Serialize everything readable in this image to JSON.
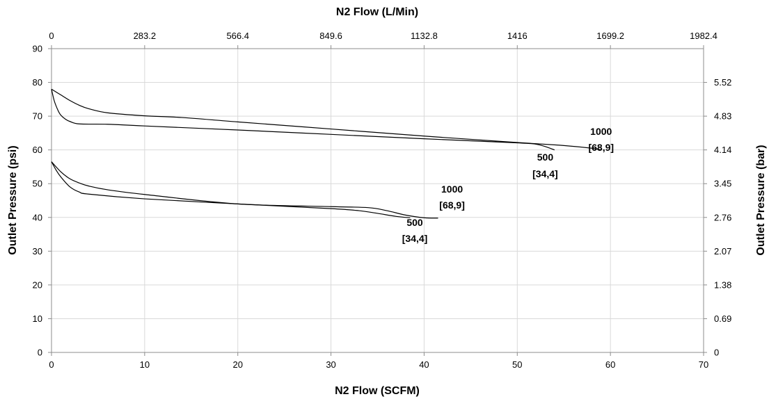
{
  "chart_data": {
    "type": "line",
    "title": "",
    "xlabel": "N2 Flow (SCFM)",
    "x2label": "N2 Flow (L/Min)",
    "ylabel": "Outlet Pressure (psi)",
    "y2label": "Outlet Pressure (bar)",
    "xlim": [
      0,
      70
    ],
    "ylim": [
      0,
      90
    ],
    "grid": true,
    "x_ticks": [
      "0",
      "10",
      "20",
      "30",
      "40",
      "50",
      "60",
      "70"
    ],
    "x2_ticks": [
      "0",
      "283.2",
      "566.4",
      "849.6",
      "1132.8",
      "1416",
      "1699.2",
      "1982.4"
    ],
    "y_ticks": [
      "0",
      "10",
      "20",
      "30",
      "40",
      "50",
      "60",
      "70",
      "80",
      "90"
    ],
    "y2_ticks": [
      "0",
      "0.69",
      "1.38",
      "2.07",
      "2.76",
      "3.45",
      "4.14",
      "4.83",
      "5.52"
    ],
    "y2_tick_values": [
      0,
      10,
      20,
      30,
      40,
      50,
      60,
      70,
      80
    ],
    "series": [
      {
        "x": [
          0,
          1,
          2,
          3,
          4,
          6,
          10,
          14,
          20,
          30,
          40,
          50,
          55,
          58,
          59
        ],
        "y": [
          78,
          76.3,
          74.6,
          73.2,
          72.2,
          71,
          70.1,
          69.6,
          68.3,
          66.2,
          64.1,
          62.2,
          61.3,
          60.5,
          60
        ]
      },
      {
        "x": [
          0,
          0.3,
          0.7,
          1,
          1.5,
          2,
          3,
          6,
          10,
          20,
          30,
          40,
          50,
          52,
          53,
          54
        ],
        "y": [
          78,
          74.5,
          71.7,
          70.3,
          69.1,
          68.4,
          67.7,
          67.6,
          67.1,
          65.9,
          64.6,
          63.3,
          62.1,
          61.7,
          61,
          60
        ]
      },
      {
        "x": [
          0,
          1,
          2,
          3,
          4,
          6,
          10,
          20,
          30,
          34,
          36,
          38,
          40,
          41.5
        ],
        "y": [
          56.5,
          53.5,
          51.4,
          50.2,
          49.3,
          48.2,
          46.8,
          44,
          43.2,
          42.9,
          42,
          40.7,
          39.9,
          39.8
        ]
      },
      {
        "x": [
          0,
          0.5,
          1,
          2,
          3,
          4,
          10,
          20,
          30,
          33,
          35,
          37,
          38.5
        ],
        "y": [
          56.5,
          54,
          52,
          49,
          47.5,
          46.9,
          45.5,
          44,
          42.6,
          42,
          41.2,
          40.3,
          39.9
        ]
      }
    ],
    "annotations": [
      {
        "text": "1000",
        "x": 59,
        "y": 64.5
      },
      {
        "text": "[68,9]",
        "x": 59,
        "y": 59.7
      },
      {
        "text": "500",
        "x": 53,
        "y": 56.8
      },
      {
        "text": "[34,4]",
        "x": 53,
        "y": 51.9
      },
      {
        "text": "1000",
        "x": 43,
        "y": 47.4
      },
      {
        "text": "[68,9]",
        "x": 43,
        "y": 42.6
      },
      {
        "text": "500",
        "x": 39,
        "y": 37.5
      },
      {
        "text": "[34,4]",
        "x": 39,
        "y": 32.7
      }
    ]
  }
}
